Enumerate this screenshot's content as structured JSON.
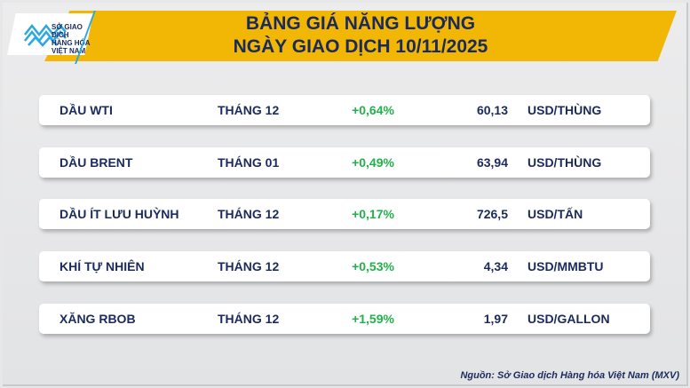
{
  "header": {
    "title_line1": "BẢNG GIÁ NĂNG LƯỢNG",
    "title_line2": "NGÀY GIAO DỊCH 10/11/2025"
  },
  "logo": {
    "text": "SỞ GIAO DỊCH HÀNG HÓA VIỆT NAM",
    "color": "#2aa8e0"
  },
  "colors": {
    "accent": "#f2b705",
    "text": "#1b2a5c",
    "positive": "#21b14b"
  },
  "rows": [
    {
      "name": "DẦU WTI",
      "month": "THÁNG 12",
      "change": "+0,64%",
      "price": "60,13",
      "unit": "USD/THÙNG"
    },
    {
      "name": "DẦU BRENT",
      "month": "THÁNG 01",
      "change": "+0,49%",
      "price": "63,94",
      "unit": "USD/THÙNG"
    },
    {
      "name": "DẦU ÍT LƯU HUỲNH",
      "month": "THÁNG 12",
      "change": "+0,17%",
      "price": "726,5",
      "unit": "USD/TẤN"
    },
    {
      "name": "KHÍ TỰ NHIÊN",
      "month": "THÁNG 12",
      "change": "+0,53%",
      "price": "4,34",
      "unit": "USD/MMBTU"
    },
    {
      "name": "XĂNG RBOB",
      "month": "THÁNG 12",
      "change": "+1,59%",
      "price": "1,97",
      "unit": "USD/GALLON"
    }
  ],
  "footer": {
    "source": "Nguồn: Sở Giao dịch Hàng hóa Việt Nam (MXV)"
  }
}
